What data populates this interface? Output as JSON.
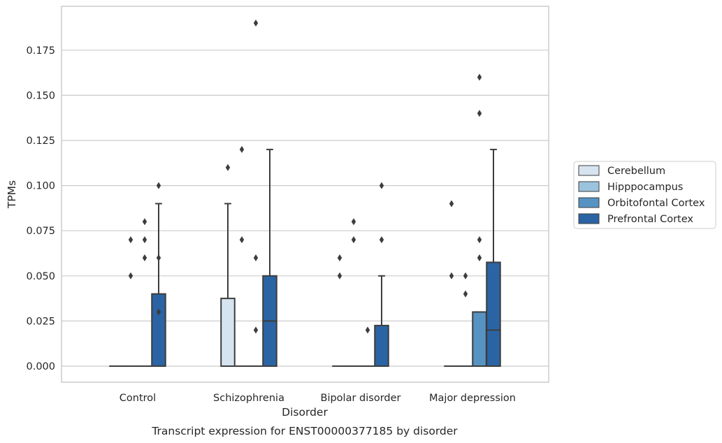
{
  "chart_data": {
    "type": "box",
    "caption": "Transcript expression for ENST00000377185 by disorder",
    "xlabel": "Disorder",
    "ylabel": "TPMs",
    "ylim": [
      -0.0095,
      0.199
    ],
    "yticks": [
      "0.000",
      "0.025",
      "0.050",
      "0.075",
      "0.100",
      "0.125",
      "0.150",
      "0.175"
    ],
    "ytick_values": [
      0,
      0.025,
      0.05,
      0.075,
      0.1,
      0.125,
      0.15,
      0.175
    ],
    "categories": [
      "Control",
      "Schizophrenia",
      "Bipolar disorder",
      "Major depression"
    ],
    "grid": true,
    "legend_position": "right",
    "series": [
      {
        "name": "Cerebellum",
        "color": "#d6e4f0",
        "boxes": [
          {
            "q1": 0,
            "median": 0,
            "q3": 0,
            "whislo": 0,
            "whishi": 0,
            "fliers": []
          },
          {
            "q1": 0,
            "median": 0,
            "q3": 0.0375,
            "whislo": 0,
            "whishi": 0.09,
            "fliers": [
              0.11
            ]
          },
          {
            "q1": 0,
            "median": 0,
            "q3": 0,
            "whislo": 0,
            "whishi": 0,
            "fliers": [
              0.05,
              0.06
            ]
          },
          {
            "q1": 0,
            "median": 0,
            "q3": 0,
            "whislo": 0,
            "whishi": 0,
            "fliers": [
              0.05,
              0.09
            ]
          }
        ]
      },
      {
        "name": "Hipppocampus",
        "color": "#9cc3de",
        "boxes": [
          {
            "q1": 0,
            "median": 0,
            "q3": 0,
            "whislo": 0,
            "whishi": 0,
            "fliers": [
              0.05,
              0.07
            ]
          },
          {
            "q1": 0,
            "median": 0,
            "q3": 0,
            "whislo": 0,
            "whishi": 0,
            "fliers": [
              0.07,
              0.12
            ]
          },
          {
            "q1": 0,
            "median": 0,
            "q3": 0,
            "whislo": 0,
            "whishi": 0,
            "fliers": [
              0.07,
              0.08
            ]
          },
          {
            "q1": 0,
            "median": 0,
            "q3": 0,
            "whislo": 0,
            "whishi": 0,
            "fliers": [
              0.04,
              0.05
            ]
          }
        ]
      },
      {
        "name": "Orbitofontal Cortex",
        "color": "#5693c3",
        "boxes": [
          {
            "q1": 0,
            "median": 0,
            "q3": 0,
            "whislo": 0,
            "whishi": 0,
            "fliers": [
              0.06,
              0.07,
              0.08
            ]
          },
          {
            "q1": 0,
            "median": 0,
            "q3": 0,
            "whislo": 0,
            "whishi": 0,
            "fliers": [
              0.02,
              0.06,
              0.19
            ]
          },
          {
            "q1": 0,
            "median": 0,
            "q3": 0,
            "whislo": 0,
            "whishi": 0,
            "fliers": [
              0.02
            ]
          },
          {
            "q1": 0,
            "median": 0,
            "q3": 0.03,
            "whislo": 0,
            "whishi": 0.03,
            "fliers": [
              0.06,
              0.07,
              0.14,
              0.16
            ]
          }
        ]
      },
      {
        "name": "Prefrontal Cortex",
        "color": "#2a64a4",
        "boxes": [
          {
            "q1": 0,
            "median": 0,
            "q3": 0.04,
            "whislo": 0,
            "whishi": 0.09,
            "fliers": [
              0.03,
              0.06,
              0.1
            ]
          },
          {
            "q1": 0,
            "median": 0.025,
            "q3": 0.05,
            "whislo": 0,
            "whishi": 0.12,
            "fliers": []
          },
          {
            "q1": 0,
            "median": 0,
            "q3": 0.0225,
            "whislo": 0,
            "whishi": 0.05,
            "fliers": [
              0.07,
              0.1
            ]
          },
          {
            "q1": 0,
            "median": 0.02,
            "q3": 0.0575,
            "whislo": 0,
            "whishi": 0.12,
            "fliers": []
          }
        ]
      }
    ]
  }
}
